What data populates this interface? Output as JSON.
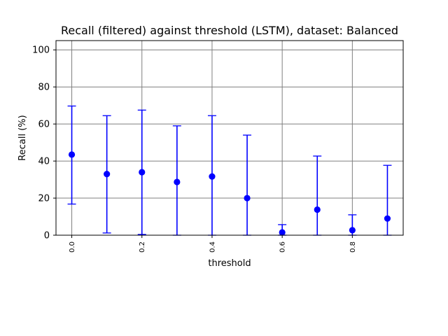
{
  "chart_data": {
    "type": "scatter",
    "title": "Recall (filtered) against threshold (LSTM), dataset: Balanced",
    "xlabel": "threshold",
    "ylabel": "Recall (%)",
    "xlim": [
      -0.045,
      0.945
    ],
    "ylim": [
      0,
      105
    ],
    "grid": true,
    "color": "#0000ff",
    "x_ticks": [
      0.0,
      0.2,
      0.4,
      0.6,
      0.8
    ],
    "x_tick_labels": [
      "0.0",
      "0.2",
      "0.4",
      "0.6",
      "0.8"
    ],
    "y_ticks": [
      0,
      20,
      40,
      60,
      80,
      100
    ],
    "y_tick_labels": [
      "0",
      "20",
      "40",
      "60",
      "80",
      "100"
    ],
    "series": [
      {
        "x": [
          0.0,
          0.1,
          0.2,
          0.3,
          0.4,
          0.5,
          0.6,
          0.7,
          0.8,
          0.9
        ],
        "y": [
          43.5,
          33.0,
          34.0,
          28.7,
          31.7,
          20.0,
          1.5,
          13.8,
          2.7,
          9.0
        ],
        "y_err_low": [
          16.8,
          1.2,
          0.4,
          0.0,
          0.0,
          0.0,
          0.0,
          0.0,
          0.0,
          0.0
        ],
        "y_err_high": [
          69.7,
          64.5,
          67.5,
          59.0,
          64.5,
          54.0,
          5.7,
          42.7,
          11.0,
          37.7
        ]
      }
    ]
  }
}
